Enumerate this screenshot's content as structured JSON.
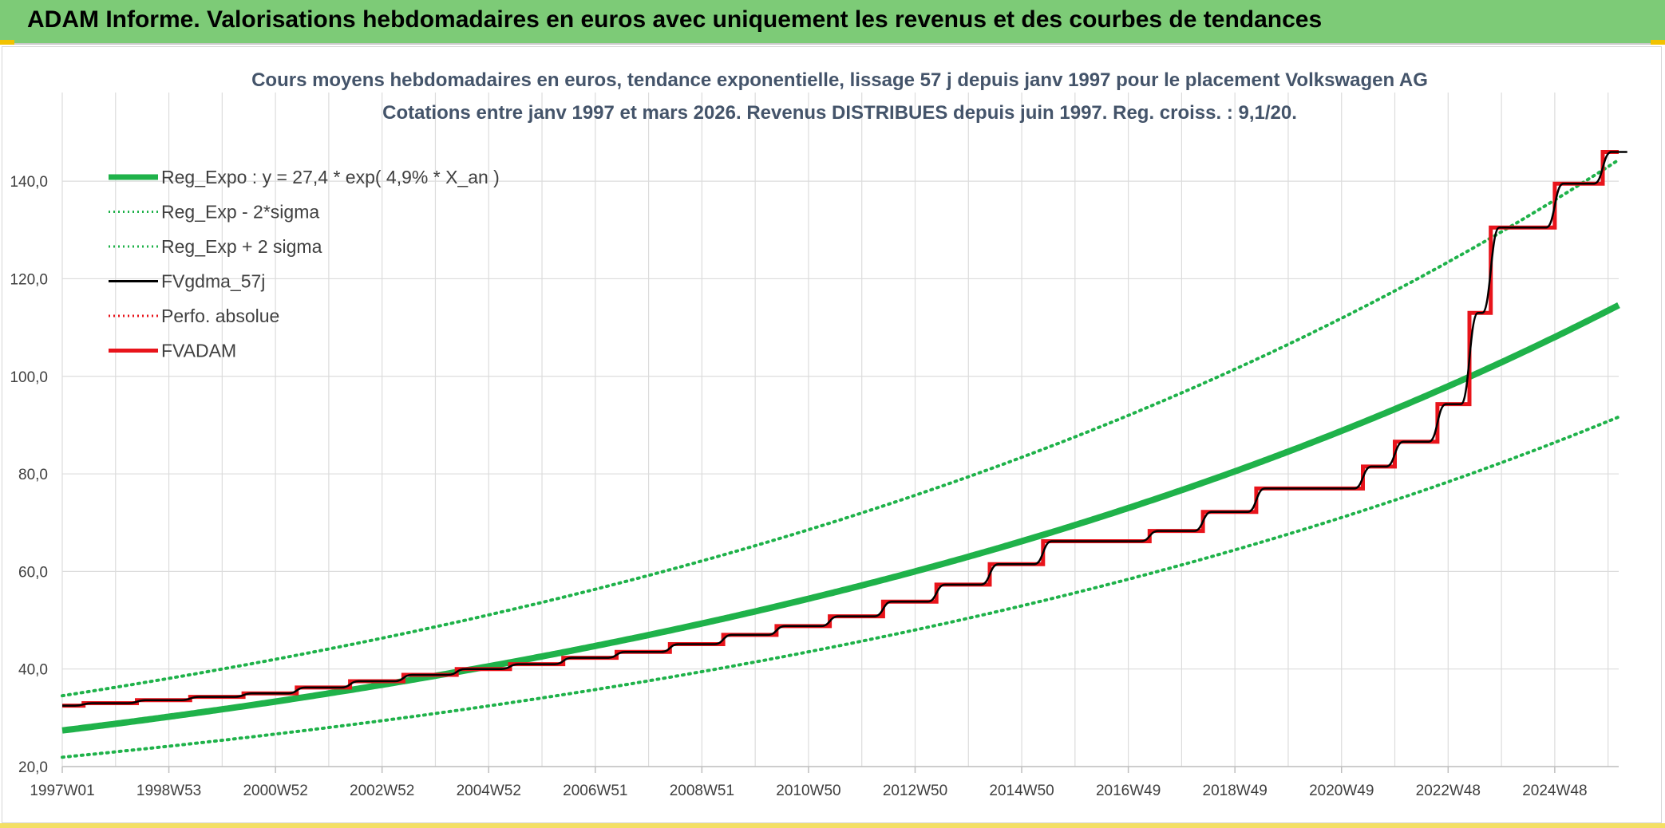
{
  "banner": {
    "title": "ADAM Informe. Valorisations hebdomadaires en euros avec uniquement les revenus et des courbes de tendances"
  },
  "colors": {
    "banner_bg": "#7dcb77",
    "regression": "#1fb24a",
    "sigma_band": "#1fb24a",
    "gdma": "#000000",
    "perfo": "#e8141b",
    "adam": "#e8141b",
    "grid": "#dcdcdc"
  },
  "chart_data": {
    "type": "line",
    "title": "Cours moyens hebdomadaires en euros, tendance exponentielle, lissage 57 j depuis janv 1997 pour le placement Volkswagen AG",
    "subtitle": "Cotations entre janv 1997 et mars 2026. Revenus DISTRIBUES depuis juin 1997. Reg. croiss. : 9,1/20.",
    "xlabel": "",
    "ylabel": "",
    "xlim": [
      1997.0,
      2026.2
    ],
    "ylim": [
      20,
      150
    ],
    "yticks": [
      20,
      40,
      60,
      80,
      100,
      120,
      140
    ],
    "ytick_labels": [
      "20,0",
      "40,0",
      "60,0",
      "80,0",
      "100,0",
      "120,0",
      "140,0"
    ],
    "xticks": [
      1997.0,
      1999.0,
      2001.0,
      2003.0,
      2005.0,
      2007.0,
      2009.0,
      2011.0,
      2013.0,
      2015.0,
      2017.0,
      2019.0,
      2021.0,
      2023.0,
      2025.0
    ],
    "xtick_labels": [
      "1997W01",
      "1998W53",
      "2000W52",
      "2002W52",
      "2004W52",
      "2006W51",
      "2008W51",
      "2010W50",
      "2012W50",
      "2014W50",
      "2016W49",
      "2018W49",
      "2020W49",
      "2022W48",
      "2024W48"
    ],
    "grid": true,
    "legend_position": "top-left",
    "regression": {
      "a": 27.4,
      "rate": 0.049,
      "start_year": 1997.0,
      "lower_factor": 0.8,
      "upper_factor": 1.26
    },
    "series": [
      {
        "name": "Reg_Expo : y = 27,4 * exp( 4,9% *  X_an )",
        "style": "solid-thick",
        "color": "#1fb24a",
        "role": "regression"
      },
      {
        "name": "Reg_Exp - 2*sigma",
        "style": "dotted",
        "color": "#1fb24a",
        "role": "lower"
      },
      {
        "name": "Reg_Exp + 2 sigma",
        "style": "dotted",
        "color": "#1fb24a",
        "role": "upper"
      },
      {
        "name": "FVgdma_57j",
        "style": "solid-thin",
        "color": "#000000",
        "role": "smoothed"
      },
      {
        "name": "Perfo. absolue",
        "style": "dotted",
        "color": "#e8141b",
        "role": "perfo"
      },
      {
        "name": "FVADAM",
        "style": "solid-thick",
        "color": "#e8141b",
        "role": "step",
        "steps": [
          [
            1997.0,
            32.5
          ],
          [
            1997.4,
            33.0
          ],
          [
            1998.4,
            33.6
          ],
          [
            1999.4,
            34.3
          ],
          [
            2000.4,
            35.0
          ],
          [
            2001.4,
            36.2
          ],
          [
            2002.4,
            37.5
          ],
          [
            2003.4,
            38.8
          ],
          [
            2004.4,
            40.0
          ],
          [
            2005.4,
            41.0
          ],
          [
            2006.4,
            42.3
          ],
          [
            2007.4,
            43.5
          ],
          [
            2008.4,
            45.1
          ],
          [
            2009.4,
            47.0
          ],
          [
            2010.4,
            48.8
          ],
          [
            2011.4,
            50.8
          ],
          [
            2012.4,
            53.8
          ],
          [
            2013.4,
            57.3
          ],
          [
            2014.4,
            61.5
          ],
          [
            2015.4,
            66.2
          ],
          [
            2017.4,
            68.3
          ],
          [
            2018.4,
            72.2
          ],
          [
            2019.4,
            77.0
          ],
          [
            2021.4,
            81.5
          ],
          [
            2022.0,
            86.6
          ],
          [
            2022.8,
            94.3
          ],
          [
            2023.4,
            113.0
          ],
          [
            2023.8,
            130.5
          ],
          [
            2025.0,
            139.5
          ],
          [
            2025.9,
            146.0
          ],
          [
            2026.2,
            146.0
          ]
        ]
      }
    ]
  }
}
